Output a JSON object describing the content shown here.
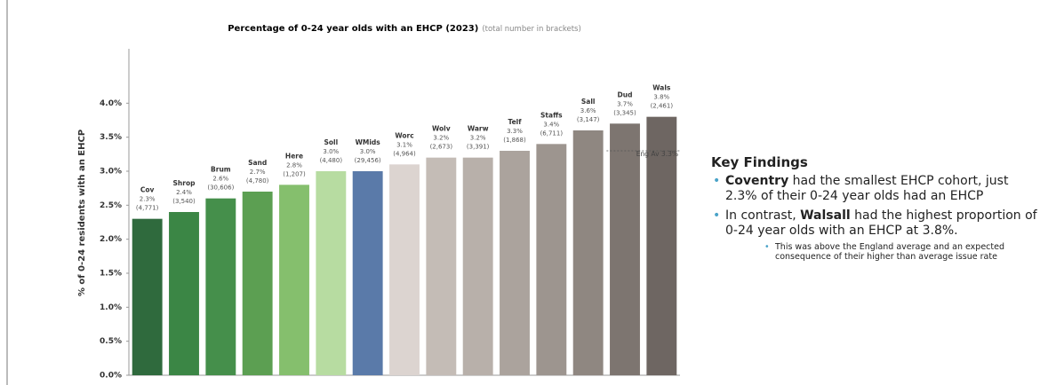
{
  "chart_data": {
    "type": "bar",
    "title": "Percentage of 0-24 year olds with an EHCP (2023)",
    "subtitle": "(total number in brackets)",
    "ylabel": "% of 0-24 residents with an EHCP",
    "categories": [
      "Cov",
      "Shrop",
      "Brum",
      "Sand",
      "Here",
      "Soll",
      "WMids",
      "Worc",
      "Wolv",
      "Warw",
      "Telf",
      "Staffs",
      "Sall",
      "Dud",
      "Wals"
    ],
    "values": [
      2.3,
      2.4,
      2.6,
      2.7,
      2.8,
      3.0,
      3.0,
      3.1,
      3.2,
      3.2,
      3.3,
      3.4,
      3.6,
      3.7,
      3.8
    ],
    "value_labels": [
      "2.3%",
      "2.4%",
      "2.6%",
      "2.7%",
      "2.8%",
      "3.0%",
      "3.0%",
      "3.1%",
      "3.2%",
      "3.2%",
      "3.3%",
      "3.4%",
      "3.6%",
      "3.7%",
      "3.8%"
    ],
    "count_labels": [
      "(4,771)",
      "(3,540)",
      "(30,606)",
      "(4,780)",
      "(1,207)",
      "(4,480)",
      "(29,456)",
      "(4,964)",
      "(2,673)",
      "(3,391)",
      "(1,868)",
      "(6,711)",
      "(3,147)",
      "(3,345)",
      "(2,461)"
    ],
    "colors": [
      "#2f6a3d",
      "#3b8645",
      "#458f4b",
      "#5c9f52",
      "#85bf6d",
      "#b7dca1",
      "#5a7aa9",
      "#dcd4d0",
      "#c4bcb6",
      "#b8b0aa",
      "#aba39d",
      "#9d958f",
      "#8f8781",
      "#7d7570",
      "#6e6662"
    ],
    "ylim": [
      0,
      4.8
    ],
    "yticks": [
      {
        "value": 0,
        "label": "0.0%"
      },
      {
        "value": 0.5,
        "label": "0.5%"
      },
      {
        "value": 1,
        "label": "1.0%"
      },
      {
        "value": 1.5,
        "label": "1.5%"
      },
      {
        "value": 2,
        "label": "2.0%"
      },
      {
        "value": 2.5,
        "label": "2.5%"
      },
      {
        "value": 3,
        "label": "3.0%"
      },
      {
        "value": 3.5,
        "label": "3.5%"
      },
      {
        "value": 4,
        "label": "4.0%"
      }
    ],
    "reference_line": {
      "value": 3.3,
      "label": "Eng Av 3.3%"
    }
  },
  "panel": {
    "title": "Key Findings",
    "bullets": [
      {
        "parts": [
          {
            "text": "Coventry",
            "bold": true
          },
          {
            "text": " had the smallest EHCP cohort, just 2.3% of their 0-24 year olds had an EHCP",
            "bold": false
          }
        ]
      },
      {
        "parts": [
          {
            "text": "In contrast, ",
            "bold": false
          },
          {
            "text": "Walsall",
            "bold": true
          },
          {
            "text": " had the highest proportion of 0-24 year olds with an EHCP at 3.8%.",
            "bold": false
          }
        ],
        "sub": "This was above the England average and an expected consequence of their higher than average issue rate"
      }
    ]
  }
}
